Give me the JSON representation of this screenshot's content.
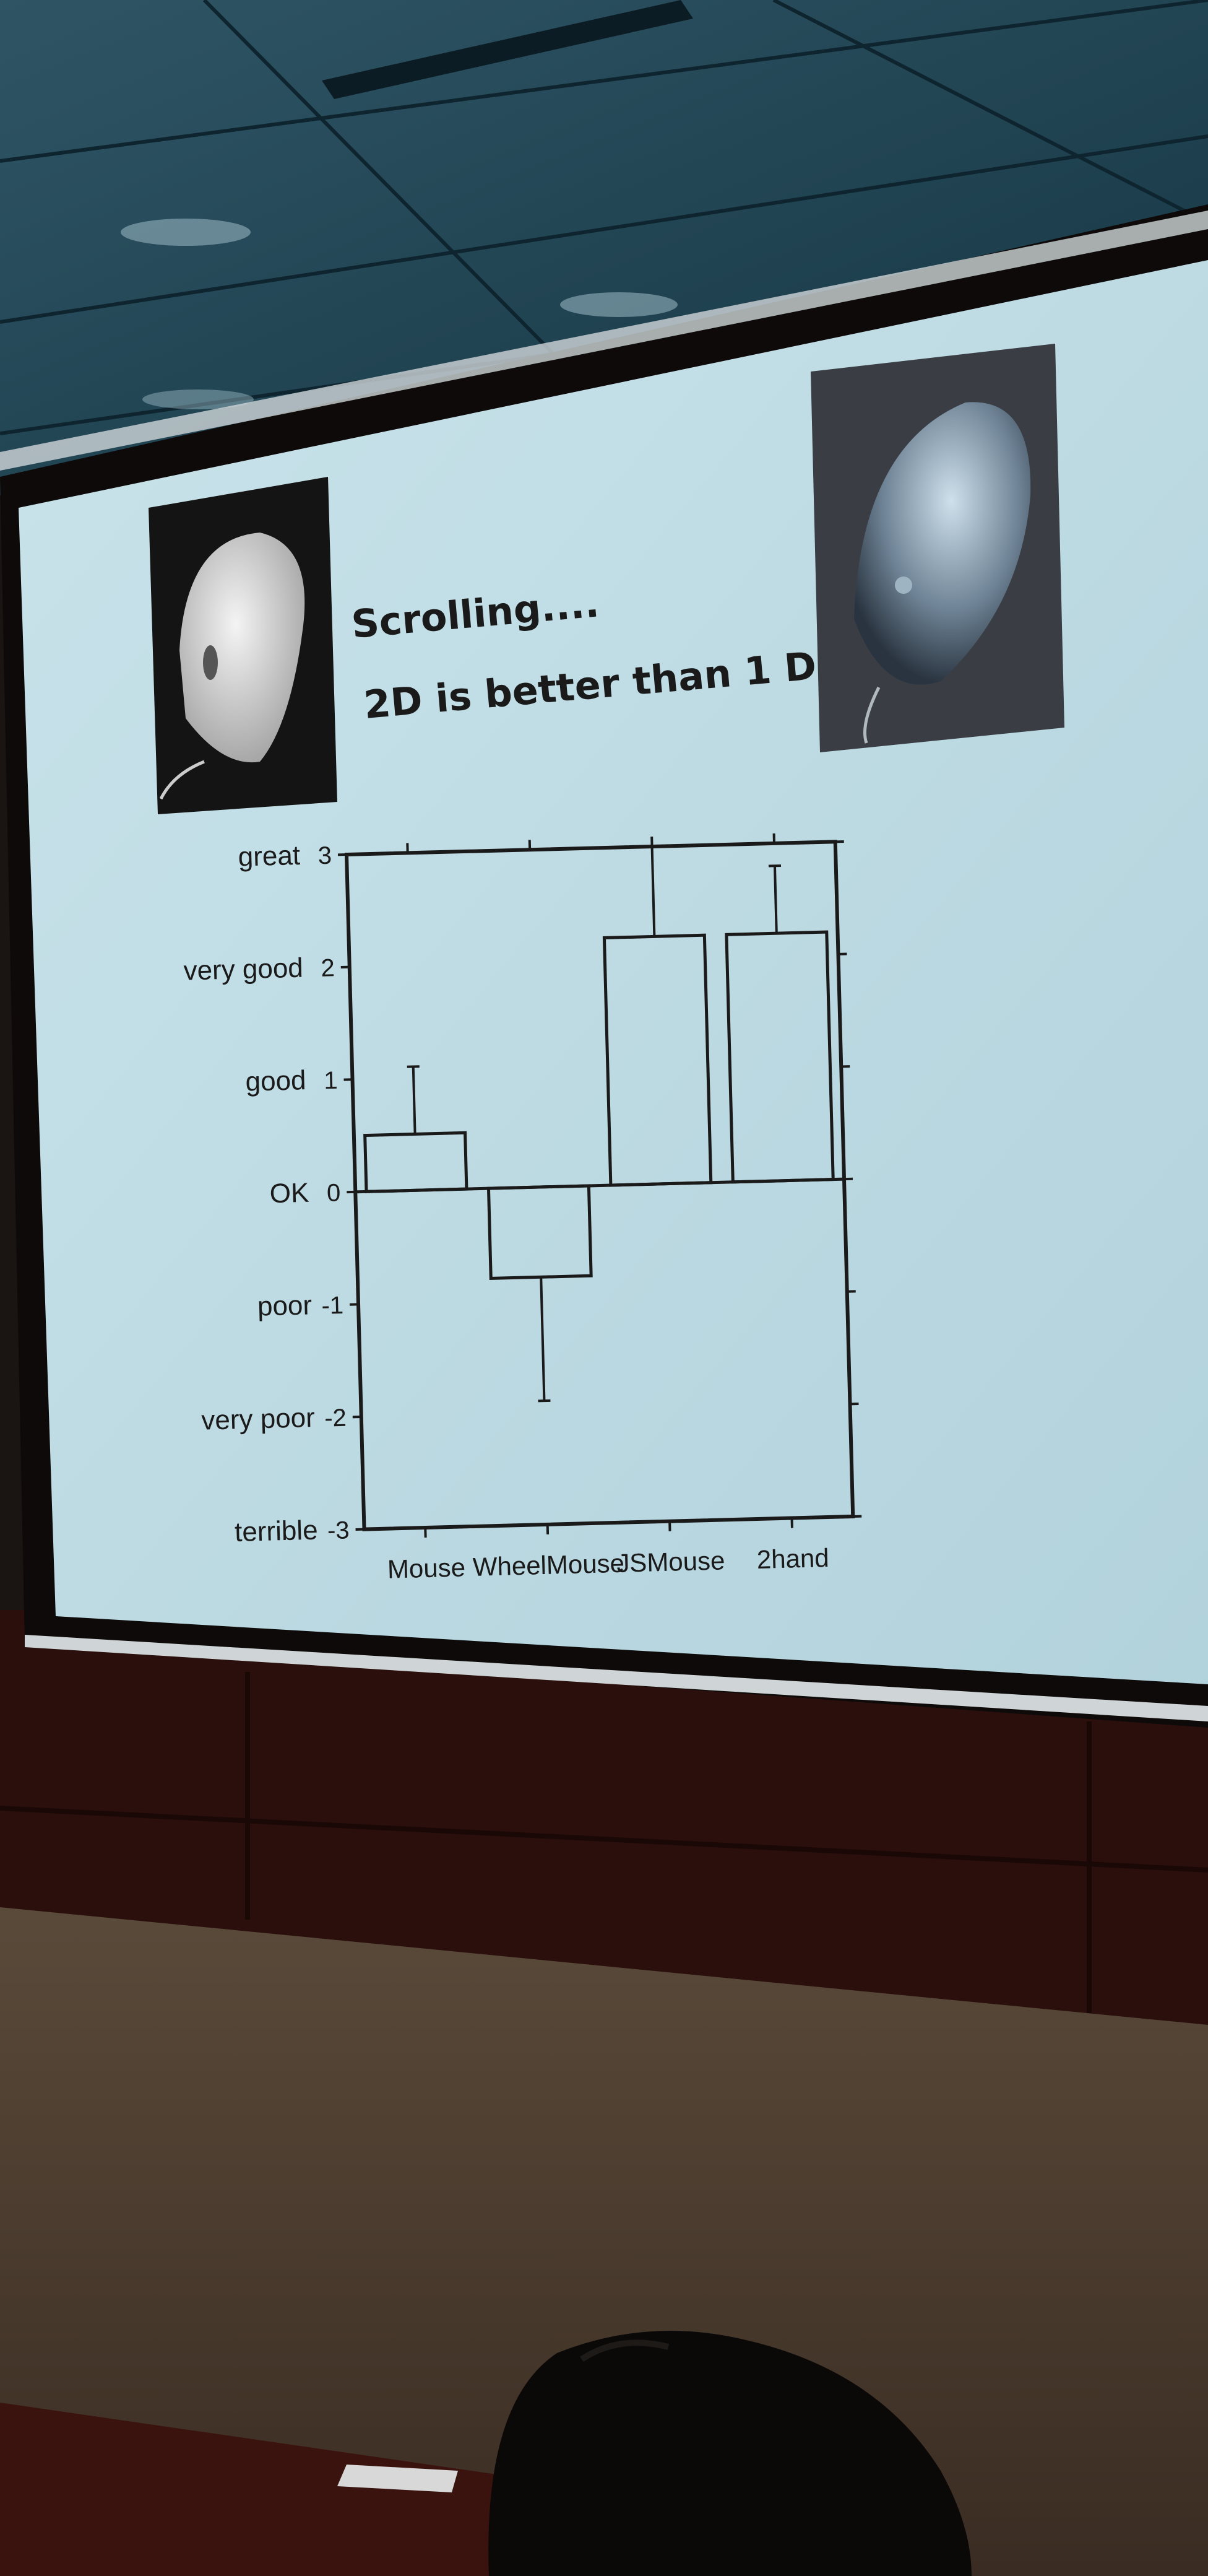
{
  "slide": {
    "title_line1": "Scrolling....",
    "title_line2": "2D is better than 1 D"
  },
  "images": {
    "left_photo": "mouse-photo-left",
    "right_photo": "mouse-photo-right"
  },
  "colors": {
    "screen": "#bfdbe3",
    "ceiling": "#1d4050",
    "wall": "#2b0f0c",
    "floor": "#4a3a2c",
    "ink": "#1a1a1a"
  },
  "chart_data": {
    "type": "bar",
    "categories": [
      "Mouse",
      "WheelMouse",
      "JSMouse",
      "2hand"
    ],
    "values": [
      0.5,
      -0.8,
      2.2,
      2.2
    ],
    "error_upper": [
      1.1,
      null,
      3.0,
      2.8
    ],
    "error_lower": [
      null,
      -1.9,
      null,
      null
    ],
    "ylim": [
      -3,
      3
    ],
    "yticks": [
      {
        "value": 3,
        "label": "great",
        "num": "3"
      },
      {
        "value": 2,
        "label": "very good",
        "num": "2"
      },
      {
        "value": 1,
        "label": "good",
        "num": "1"
      },
      {
        "value": 0,
        "label": "OK",
        "num": "0"
      },
      {
        "value": -1,
        "label": "poor",
        "num": "-1"
      },
      {
        "value": -2,
        "label": "very poor",
        "num": "-2"
      },
      {
        "value": -3,
        "label": "terrible",
        "num": "-3"
      }
    ],
    "title": "",
    "xlabel": "",
    "ylabel": ""
  }
}
